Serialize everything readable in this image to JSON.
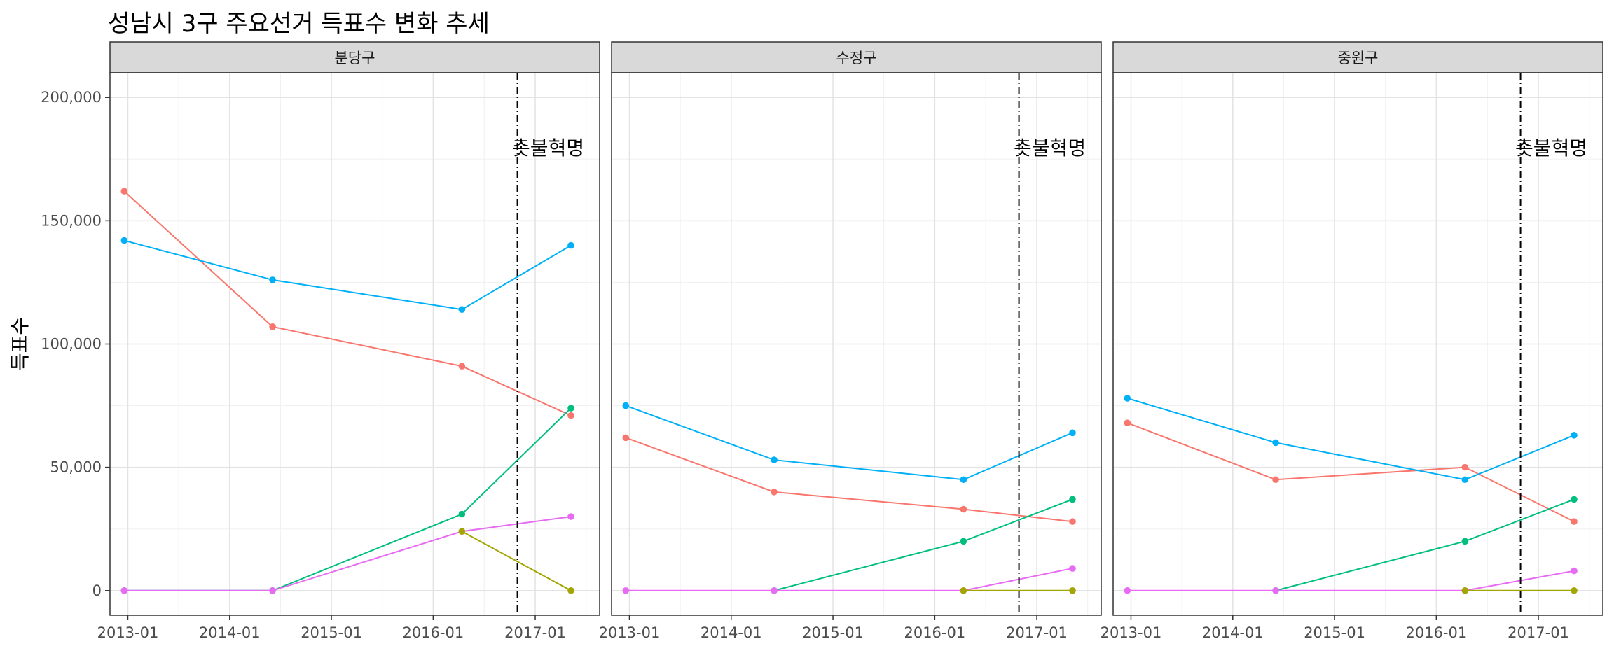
{
  "chart_data": {
    "type": "line",
    "title": "성남시 3구 주요선거 득표수 변화 추세",
    "xlabel": "",
    "ylabel": "득표수",
    "ylim": [
      -10000,
      210000
    ],
    "xlim": [
      "2012-10-29",
      "2017-08-20"
    ],
    "y_ticks": [
      0,
      50000,
      100000,
      150000,
      200000
    ],
    "y_tick_labels": [
      "0",
      "50,000",
      "100,000",
      "150,000",
      "200,000"
    ],
    "x_ticks": [
      "2013-01-01",
      "2014-01-01",
      "2015-01-01",
      "2016-01-01",
      "2017-01-01"
    ],
    "x_tick_labels": [
      "2013-01",
      "2014-01",
      "2015-01",
      "2016-01",
      "2017-01"
    ],
    "grid": true,
    "legend": "none",
    "x": [
      "2012-12-19",
      "2014-06-04",
      "2016-04-13",
      "2017-05-09"
    ],
    "vline": {
      "date": "2016-10-29",
      "label": "촛불혁명"
    },
    "series_colors": [
      "#F8766D",
      "#00B0F6",
      "#00BF7D",
      "#E76BF3",
      "#A3A500"
    ],
    "panels": [
      {
        "name": "분당구",
        "series": [
          {
            "values": [
              162000,
              107000,
              91000,
              71000
            ]
          },
          {
            "values": [
              142000,
              126000,
              114000,
              140000
            ]
          },
          {
            "values": [
              0,
              0,
              31000,
              74000
            ]
          },
          {
            "values": [
              0,
              0,
              24000,
              30000
            ]
          },
          {
            "values": [
              null,
              null,
              24000,
              0
            ]
          }
        ]
      },
      {
        "name": "수정구",
        "series": [
          {
            "values": [
              62000,
              40000,
              33000,
              28000
            ]
          },
          {
            "values": [
              75000,
              53000,
              45000,
              64000
            ]
          },
          {
            "values": [
              null,
              0,
              20000,
              37000
            ]
          },
          {
            "values": [
              0,
              0,
              0,
              9000
            ]
          },
          {
            "values": [
              null,
              null,
              0,
              0
            ]
          }
        ]
      },
      {
        "name": "중원구",
        "series": [
          {
            "values": [
              68000,
              45000,
              50000,
              28000
            ]
          },
          {
            "values": [
              78000,
              60000,
              45000,
              63000
            ]
          },
          {
            "values": [
              null,
              0,
              20000,
              37000
            ]
          },
          {
            "values": [
              0,
              0,
              0,
              8000
            ]
          },
          {
            "values": [
              null,
              null,
              0,
              0
            ]
          }
        ]
      }
    ]
  }
}
